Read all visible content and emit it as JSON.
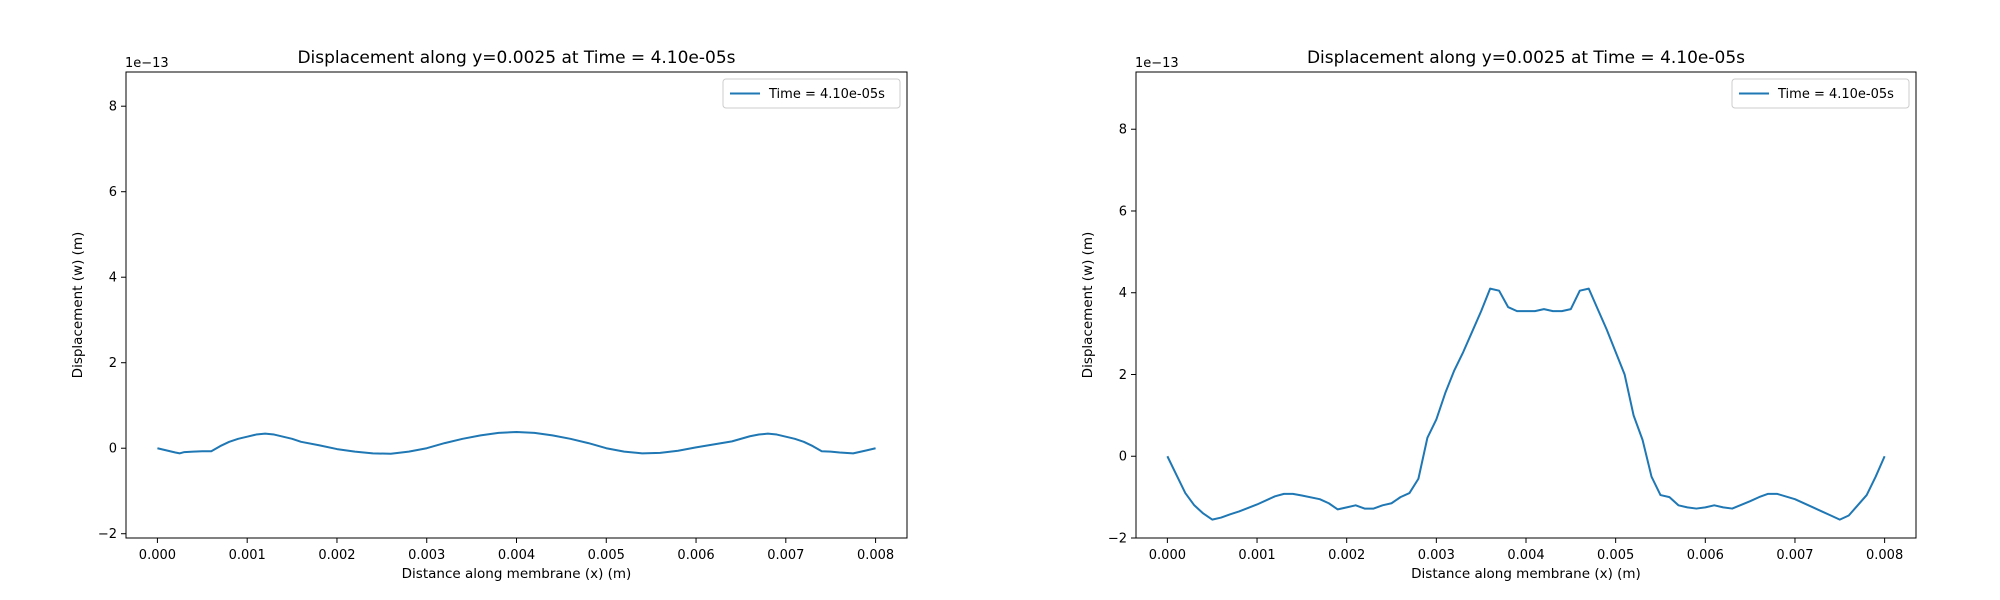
{
  "chart_data": [
    {
      "type": "line",
      "title": "Displacement along y=0.0025 at Time = 4.10e-05s",
      "xlabel": "Distance along membrane (x) (m)",
      "ylabel": "Displacement (w) (m)",
      "y_scale_label": "1e−13",
      "xlim": [
        -0.00035,
        0.00835
      ],
      "ylim": [
        -2.1,
        8.8
      ],
      "xticks": [
        0.0,
        0.001,
        0.002,
        0.003,
        0.004,
        0.005,
        0.006,
        0.007,
        0.008
      ],
      "xtick_labels": [
        "0.000",
        "0.001",
        "0.002",
        "0.003",
        "0.004",
        "0.005",
        "0.006",
        "0.007",
        "0.008"
      ],
      "yticks": [
        -2,
        0,
        2,
        4,
        6,
        8
      ],
      "ytick_labels": [
        "−2",
        "0",
        "2",
        "4",
        "6",
        "8"
      ],
      "grid": false,
      "legend_position": "top-right",
      "series": [
        {
          "name": "Time = 4.10e-05s",
          "color": "#1f77b4",
          "x": [
            0.0,
            0.0001,
            0.0002,
            0.00025,
            0.0003,
            0.0004,
            0.0005,
            0.0006,
            0.0007,
            0.0008,
            0.0009,
            0.001,
            0.0011,
            0.0012,
            0.0013,
            0.0014,
            0.0015,
            0.0016,
            0.0018,
            0.002,
            0.0022,
            0.0024,
            0.0026,
            0.0028,
            0.003,
            0.0032,
            0.0034,
            0.0036,
            0.0038,
            0.004,
            0.0042,
            0.0044,
            0.0046,
            0.0048,
            0.005,
            0.0052,
            0.0054,
            0.0056,
            0.0058,
            0.006,
            0.0062,
            0.0064,
            0.0066,
            0.0067,
            0.0068,
            0.0069,
            0.007,
            0.0071,
            0.0072,
            0.0073,
            0.0074,
            0.0075,
            0.0076,
            0.00775,
            0.0079,
            0.008
          ],
          "y": [
            0.0,
            -0.05,
            -0.1,
            -0.12,
            -0.09,
            -0.08,
            -0.07,
            -0.07,
            0.05,
            0.15,
            0.22,
            0.27,
            0.32,
            0.34,
            0.32,
            0.27,
            0.22,
            0.15,
            0.07,
            -0.02,
            -0.08,
            -0.12,
            -0.13,
            -0.08,
            0.0,
            0.12,
            0.22,
            0.3,
            0.36,
            0.38,
            0.36,
            0.3,
            0.22,
            0.12,
            0.0,
            -0.08,
            -0.12,
            -0.11,
            -0.06,
            0.02,
            0.09,
            0.16,
            0.28,
            0.32,
            0.34,
            0.32,
            0.27,
            0.22,
            0.15,
            0.05,
            -0.07,
            -0.08,
            -0.1,
            -0.12,
            -0.05,
            0.0
          ]
        }
      ]
    },
    {
      "type": "line",
      "title": "Displacement along y=0.0025 at Time = 4.10e-05s",
      "xlabel": "Distance along membrane (x) (m)",
      "ylabel": "Displacement (w) (m)",
      "y_scale_label": "1e−13",
      "xlim": [
        -0.00035,
        0.00835
      ],
      "ylim": [
        -2.0,
        9.4
      ],
      "xticks": [
        0.0,
        0.001,
        0.002,
        0.003,
        0.004,
        0.005,
        0.006,
        0.007,
        0.008
      ],
      "xtick_labels": [
        "0.000",
        "0.001",
        "0.002",
        "0.003",
        "0.004",
        "0.005",
        "0.006",
        "0.007",
        "0.008"
      ],
      "yticks": [
        -2,
        0,
        2,
        4,
        6,
        8
      ],
      "ytick_labels": [
        "−2",
        "0",
        "2",
        "4",
        "6",
        "8"
      ],
      "grid": false,
      "legend_position": "top-right",
      "series": [
        {
          "name": "Time = 4.10e-05s",
          "color": "#1f77b4",
          "x": [
            0.0,
            0.0001,
            0.0002,
            0.0003,
            0.0004,
            0.0005,
            0.0006,
            0.0007,
            0.0008,
            0.001,
            0.0012,
            0.0013,
            0.0014,
            0.0015,
            0.0017,
            0.0018,
            0.0019,
            0.002,
            0.0021,
            0.0022,
            0.0023,
            0.0024,
            0.0025,
            0.0026,
            0.0027,
            0.0028,
            0.0029,
            0.003,
            0.0031,
            0.0032,
            0.0033,
            0.0034,
            0.0035,
            0.0036,
            0.0037,
            0.0038,
            0.0039,
            0.004,
            0.0041,
            0.0042,
            0.0043,
            0.0044,
            0.0045,
            0.0046,
            0.0047,
            0.0048,
            0.0049,
            0.005,
            0.0051,
            0.0052,
            0.0053,
            0.0054,
            0.0055,
            0.0056,
            0.0057,
            0.0058,
            0.0059,
            0.006,
            0.0061,
            0.0062,
            0.0063,
            0.0065,
            0.0066,
            0.0067,
            0.0068,
            0.007,
            0.0072,
            0.0073,
            0.0074,
            0.0075,
            0.0076,
            0.0077,
            0.0078,
            0.0079,
            0.008
          ],
          "y": [
            0.0,
            -0.45,
            -0.9,
            -1.2,
            -1.4,
            -1.55,
            -1.5,
            -1.42,
            -1.35,
            -1.18,
            -0.98,
            -0.92,
            -0.92,
            -0.96,
            -1.05,
            -1.15,
            -1.3,
            -1.25,
            -1.2,
            -1.28,
            -1.28,
            -1.2,
            -1.15,
            -1.0,
            -0.9,
            -0.55,
            0.45,
            0.9,
            1.55,
            2.1,
            2.55,
            3.05,
            3.55,
            4.1,
            4.05,
            3.65,
            3.55,
            3.55,
            3.55,
            3.6,
            3.55,
            3.55,
            3.6,
            4.05,
            4.1,
            3.6,
            3.1,
            2.55,
            2.0,
            1.0,
            0.4,
            -0.5,
            -0.95,
            -1.0,
            -1.2,
            -1.25,
            -1.28,
            -1.25,
            -1.2,
            -1.25,
            -1.28,
            -1.1,
            -1.0,
            -0.92,
            -0.92,
            -1.05,
            -1.25,
            -1.35,
            -1.45,
            -1.55,
            -1.45,
            -1.2,
            -0.95,
            -0.5,
            0.0
          ]
        }
      ]
    }
  ]
}
